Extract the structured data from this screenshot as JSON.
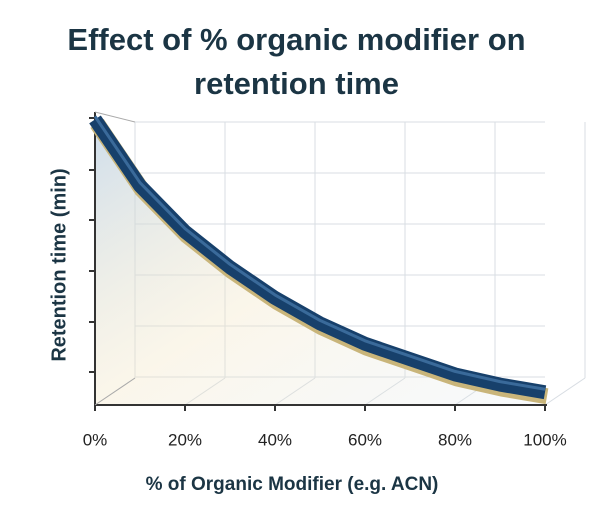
{
  "chart_data": {
    "type": "line",
    "title": "Effect of % organic modifier on retention time",
    "x_label": "% of Organic Modifier (e.g. ACN)",
    "y_label": "Retention time (min)",
    "x": [
      0,
      10,
      20,
      30,
      40,
      50,
      60,
      70,
      80,
      90,
      100
    ],
    "series": [
      {
        "color": "#17406b",
        "values": [
          5.6,
          4.3,
          3.4,
          2.7,
          2.1,
          1.6,
          1.2,
          0.9,
          0.6,
          0.4,
          0.25
        ]
      }
    ],
    "xlim": [
      0,
      100
    ],
    "xticks": [
      {
        "value": 0,
        "label": "0%"
      },
      {
        "value": 20,
        "label": "20%"
      },
      {
        "value": 40,
        "label": "40%"
      },
      {
        "value": 60,
        "label": "60%"
      },
      {
        "value": 80,
        "label": "80%"
      },
      {
        "value": 100,
        "label": "100%"
      }
    ],
    "ylim": [
      0,
      6
    ],
    "grid": true
  }
}
